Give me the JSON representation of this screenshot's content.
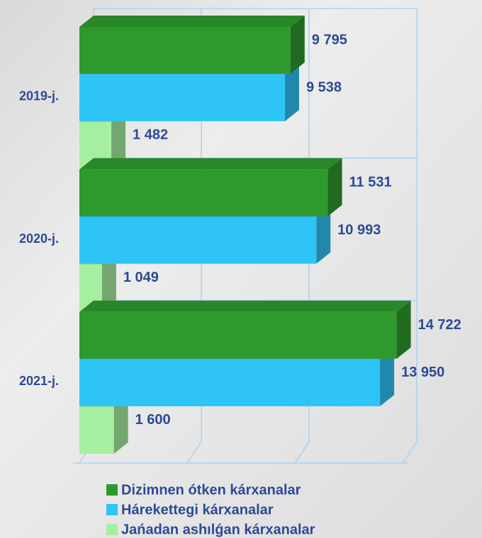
{
  "chart_data": {
    "type": "bar3d_horizontal",
    "categories": [
      "2019-j.",
      "2020-j.",
      "2021-j."
    ],
    "series": [
      {
        "name": "Dizimnen ótken kárxanalar",
        "color": "#2e9a2e",
        "values": [
          9795,
          11531,
          14722
        ],
        "value_labels": [
          "9 795",
          "11 531",
          "14 722"
        ]
      },
      {
        "name": "Hárekettegi kárxanalar",
        "color": "#2ec4f5",
        "values": [
          9538,
          10993,
          13950
        ],
        "value_labels": [
          "9 538",
          "10 993",
          "13 950"
        ]
      },
      {
        "name": "Jańadan ashılǵan kárxanalar",
        "color": "#a6efa0",
        "values": [
          1482,
          1049,
          1600
        ],
        "value_labels": [
          "1 482",
          "1 049",
          "1 600"
        ]
      }
    ],
    "xlim": [
      0,
      15000
    ],
    "xticks": [
      0,
      5000,
      10000,
      15000
    ],
    "grid": true
  }
}
